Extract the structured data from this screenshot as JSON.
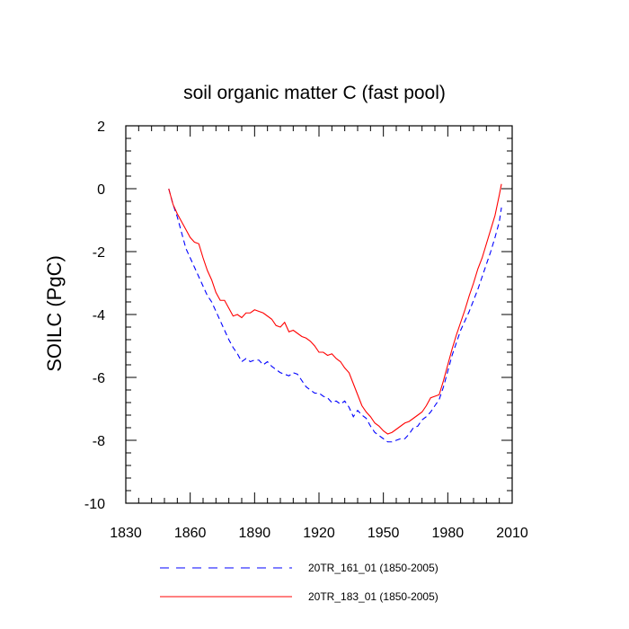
{
  "chart_data": {
    "type": "line",
    "title": "soil organic matter C (fast pool)",
    "xlabel": "",
    "ylabel": "SOILC  (PgC)",
    "xlim": [
      1830,
      2010
    ],
    "ylim": [
      -10,
      2
    ],
    "xticks": [
      1830,
      1860,
      1890,
      1920,
      1950,
      1980,
      2010
    ],
    "yticks": [
      2,
      0,
      -2,
      -4,
      -6,
      -8,
      -10
    ],
    "series": [
      {
        "name": "20TR_161_01 (1850-2005)",
        "color": "#0000ff",
        "style": "dashed",
        "x": [
          1850,
          1852,
          1854,
          1856,
          1858,
          1860,
          1862,
          1864,
          1866,
          1868,
          1870,
          1872,
          1874,
          1876,
          1878,
          1880,
          1882,
          1884,
          1886,
          1888,
          1890,
          1892,
          1894,
          1896,
          1898,
          1900,
          1902,
          1904,
          1906,
          1908,
          1910,
          1912,
          1914,
          1916,
          1918,
          1920,
          1922,
          1924,
          1926,
          1928,
          1930,
          1932,
          1934,
          1936,
          1938,
          1940,
          1942,
          1944,
          1946,
          1948,
          1950,
          1952,
          1954,
          1956,
          1958,
          1960,
          1962,
          1964,
          1966,
          1968,
          1970,
          1972,
          1974,
          1976,
          1978,
          1980,
          1982,
          1984,
          1986,
          1988,
          1990,
          1992,
          1994,
          1996,
          1998,
          2000,
          2002,
          2004,
          2005
        ],
        "values": [
          0,
          -0.5,
          -0.9,
          -1.4,
          -1.9,
          -2.2,
          -2.5,
          -2.8,
          -3.1,
          -3.4,
          -3.6,
          -3.9,
          -4.2,
          -4.5,
          -4.8,
          -5.05,
          -5.25,
          -5.5,
          -5.4,
          -5.5,
          -5.45,
          -5.45,
          -5.6,
          -5.5,
          -5.65,
          -5.75,
          -5.85,
          -5.9,
          -5.95,
          -5.85,
          -5.9,
          -6.1,
          -6.3,
          -6.4,
          -6.5,
          -6.5,
          -6.6,
          -6.65,
          -6.8,
          -6.75,
          -6.85,
          -6.75,
          -6.95,
          -7.25,
          -7.05,
          -7.2,
          -7.3,
          -7.55,
          -7.75,
          -7.85,
          -7.95,
          -8.05,
          -8.05,
          -8.0,
          -7.95,
          -7.95,
          -7.8,
          -7.6,
          -7.55,
          -7.35,
          -7.25,
          -7.1,
          -6.9,
          -6.7,
          -6.3,
          -5.8,
          -5.3,
          -4.9,
          -4.5,
          -4.2,
          -3.9,
          -3.55,
          -3.2,
          -2.8,
          -2.4,
          -2.0,
          -1.55,
          -1.05,
          -0.6
        ]
      },
      {
        "name": "20TR_183_01 (1850-2005)",
        "color": "#ff0000",
        "style": "solid",
        "x": [
          1850,
          1852,
          1854,
          1856,
          1858,
          1860,
          1862,
          1864,
          1866,
          1868,
          1870,
          1872,
          1874,
          1876,
          1878,
          1880,
          1882,
          1884,
          1886,
          1888,
          1890,
          1892,
          1894,
          1896,
          1898,
          1900,
          1902,
          1904,
          1906,
          1908,
          1910,
          1912,
          1914,
          1916,
          1918,
          1920,
          1922,
          1924,
          1926,
          1928,
          1930,
          1932,
          1934,
          1936,
          1938,
          1940,
          1942,
          1944,
          1946,
          1948,
          1950,
          1952,
          1954,
          1956,
          1958,
          1960,
          1962,
          1964,
          1966,
          1968,
          1970,
          1972,
          1974,
          1976,
          1978,
          1980,
          1982,
          1984,
          1986,
          1988,
          1990,
          1992,
          1994,
          1996,
          1998,
          2000,
          2002,
          2004,
          2005
        ],
        "values": [
          0,
          -0.5,
          -0.8,
          -1.05,
          -1.3,
          -1.55,
          -1.7,
          -1.75,
          -2.2,
          -2.6,
          -2.9,
          -3.3,
          -3.55,
          -3.55,
          -3.8,
          -4.05,
          -4.0,
          -4.1,
          -3.95,
          -3.95,
          -3.85,
          -3.9,
          -3.95,
          -4.05,
          -4.15,
          -4.35,
          -4.4,
          -4.25,
          -4.55,
          -4.5,
          -4.6,
          -4.7,
          -4.75,
          -4.85,
          -5.0,
          -5.2,
          -5.2,
          -5.3,
          -5.25,
          -5.4,
          -5.5,
          -5.7,
          -5.85,
          -6.2,
          -6.55,
          -6.9,
          -7.1,
          -7.25,
          -7.45,
          -7.55,
          -7.7,
          -7.8,
          -7.75,
          -7.65,
          -7.55,
          -7.45,
          -7.4,
          -7.3,
          -7.2,
          -7.1,
          -6.9,
          -6.65,
          -6.6,
          -6.55,
          -6.1,
          -5.6,
          -5.1,
          -4.65,
          -4.25,
          -3.85,
          -3.4,
          -3.0,
          -2.55,
          -2.2,
          -1.75,
          -1.3,
          -0.85,
          -0.2,
          0.15
        ]
      }
    ],
    "legend_position": "bottom"
  }
}
